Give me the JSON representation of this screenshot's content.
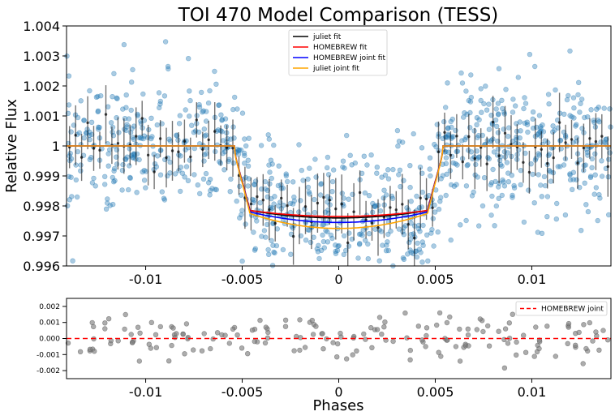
{
  "chart_data": [
    {
      "type": "scatter",
      "title": "TOI 470 Model Comparison (TESS)",
      "xlabel": "",
      "ylabel": "Relative Flux",
      "xlim": [
        -0.0141,
        0.0141
      ],
      "ylim": [
        0.996,
        1.004
      ],
      "xticks": [
        -0.01,
        -0.005,
        0,
        0.005,
        0.01
      ],
      "xtick_labels": [
        "-0.01",
        "-0.005",
        "0",
        "0.005",
        "0.01"
      ],
      "yticks": [
        0.996,
        0.997,
        0.998,
        0.999,
        1.0,
        1.001,
        1.002,
        1.003,
        1.004
      ],
      "ytick_labels": [
        "0.996",
        "0.997",
        "0.998",
        "0.999",
        "1",
        "1.001",
        "1.002",
        "1.003",
        "1.004"
      ],
      "grid": false,
      "legend_position": "top-center",
      "data_points": {
        "color": "#1f77b4",
        "description_count": 1000,
        "scatter_sigma": 0.0011
      },
      "binned_points": {
        "color": "#000000",
        "error": 0.0008
      },
      "model": {
        "t1": 0.0054,
        "t2": 0.0046,
        "ingress_shape": "limb-darkened"
      },
      "series": [
        {
          "name": "juliet fit",
          "color": "#000000",
          "depth": 0.0024,
          "limb": 0.00025
        },
        {
          "name": "HOMEBREW fit",
          "color": "#ff0000",
          "depth": 0.00235,
          "limb": 0.0002
        },
        {
          "name": "HOMEBREW joint fit",
          "color": "#0000ff",
          "depth": 0.00255,
          "limb": 0.00035
        },
        {
          "name": "juliet joint fit",
          "color": "#ffa500",
          "depth": 0.00275,
          "limb": 0.0005
        }
      ]
    },
    {
      "type": "scatter",
      "title": "",
      "xlabel": "Phases",
      "ylabel": "",
      "xlim": [
        -0.0141,
        0.0141
      ],
      "ylim": [
        -0.0025,
        0.0025
      ],
      "xticks": [
        -0.01,
        -0.005,
        0,
        0.005,
        0.01
      ],
      "xtick_labels": [
        "-0.01",
        "-0.005",
        "0",
        "0.005",
        "0.01"
      ],
      "yticks": [
        -0.002,
        -0.001,
        0.0,
        0.001,
        0.002
      ],
      "ytick_labels": [
        "-0.002",
        "-0.001",
        "0.000",
        "0.001",
        "0.002"
      ],
      "grid": false,
      "legend_position": "top-right",
      "points_color": "#808080",
      "residual_sigma": 0.0007,
      "reference_line": {
        "name": "HOMEBREW joint",
        "color": "#ff0000",
        "y": 0.0,
        "style": "dashed"
      }
    }
  ]
}
